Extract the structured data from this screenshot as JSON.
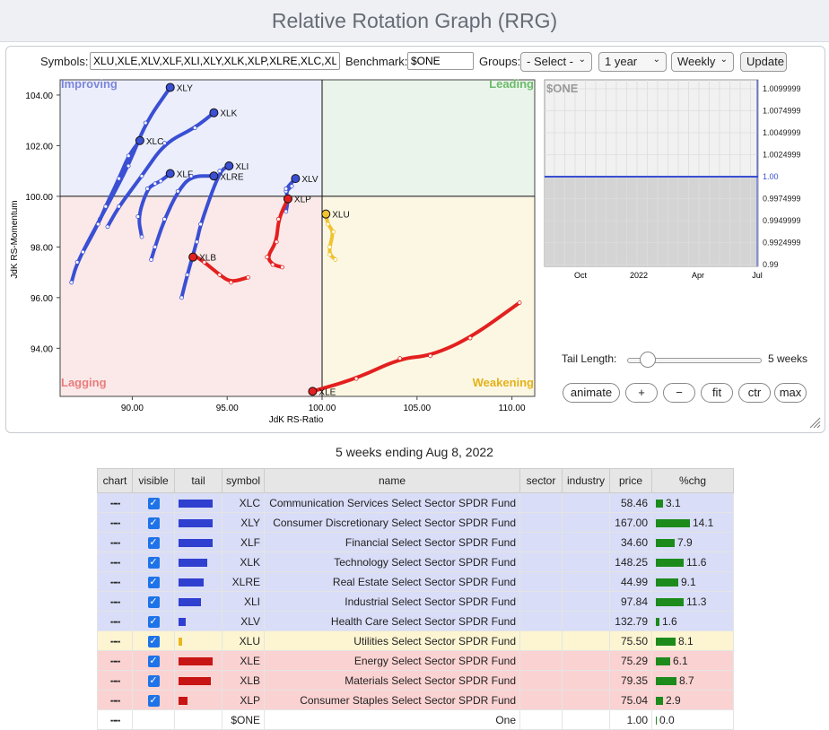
{
  "page": {
    "title": "Relative Rotation Graph (RRG)"
  },
  "controls": {
    "symbols_label": "Symbols:",
    "symbols_value": "XLU,XLE,XLV,XLF,XLI,XLY,XLK,XLP,XLRE,XLC,XLB",
    "benchmark_label": "Benchmark:",
    "benchmark_value": "$ONE",
    "groups_label": "Groups:",
    "groups_selected": "- Select -",
    "period_selected": "1 year",
    "interval_selected": "Weekly",
    "update_label": "Update",
    "tail_length_label": "Tail Length:",
    "tail_length_value": "5 weeks",
    "buttons": {
      "animate": "animate",
      "plus": "+",
      "minus": "−",
      "fit": "fit",
      "ctr": "ctr",
      "max": "max"
    }
  },
  "colors": {
    "improving": "#3a4fd3",
    "lagging": "#e3201f",
    "weakening": "#f0c330",
    "leading": "#2f9a2f"
  },
  "chart_data": [
    {
      "type": "scatter",
      "xlabel": "JdK RS-Ratio",
      "ylabel": "JdK RS-Momentum",
      "xlim": [
        86.2,
        111.2
      ],
      "ylim": [
        92.1,
        104.6
      ],
      "xticks": [
        90,
        95,
        100,
        105,
        110
      ],
      "yticks": [
        94,
        96,
        98,
        100,
        102,
        104
      ],
      "xtick_labels": [
        "90.00",
        "95.00",
        "100.00",
        "105.00",
        "110.00"
      ],
      "ytick_labels": [
        "94.00",
        "96.00",
        "98.00",
        "100.00",
        "102.00",
        "104.00"
      ],
      "quadrants": {
        "improving": "Improving",
        "leading": "Leading",
        "weakening": "Weakening",
        "lagging": "Lagging"
      },
      "series": [
        {
          "name": "XLY",
          "quadrant": "improving",
          "points": [
            [
              86.8,
              96.6
            ],
            [
              87.1,
              97.4
            ],
            [
              88.3,
              99.1
            ],
            [
              89.8,
              101.2
            ],
            [
              90.7,
              102.9
            ],
            [
              92.0,
              104.3
            ]
          ]
        },
        {
          "name": "XLK",
          "quadrant": "improving",
          "points": [
            [
              88.7,
              98.8
            ],
            [
              89.3,
              99.6
            ],
            [
              90.5,
              100.8
            ],
            [
              91.7,
              102.1
            ],
            [
              93.3,
              102.7
            ],
            [
              94.3,
              103.3
            ]
          ]
        },
        {
          "name": "XLC",
          "quadrant": "improving",
          "points": [
            [
              87.4,
              97.8
            ],
            [
              88.2,
              98.9
            ],
            [
              88.6,
              99.6
            ],
            [
              89.3,
              100.7
            ],
            [
              89.8,
              101.6
            ],
            [
              90.4,
              102.2
            ]
          ]
        },
        {
          "name": "XLF",
          "quadrant": "improving",
          "points": [
            [
              90.5,
              98.4
            ],
            [
              90.3,
              99.2
            ],
            [
              90.8,
              100.3
            ],
            [
              91.2,
              100.5
            ],
            [
              91.5,
              100.6
            ],
            [
              92.0,
              100.9
            ]
          ]
        },
        {
          "name": "XLI",
          "quadrant": "improving",
          "points": [
            [
              92.6,
              96.0
            ],
            [
              92.9,
              96.9
            ],
            [
              93.4,
              98.2
            ],
            [
              93.6,
              98.9
            ],
            [
              94.6,
              101.0
            ],
            [
              95.1,
              101.2
            ]
          ]
        },
        {
          "name": "XLRE",
          "quadrant": "improving",
          "points": [
            [
              91.0,
              97.5
            ],
            [
              91.2,
              98.0
            ],
            [
              91.7,
              99.1
            ],
            [
              92.4,
              100.2
            ],
            [
              93.1,
              100.8
            ],
            [
              94.3,
              100.8
            ]
          ]
        },
        {
          "name": "XLV",
          "quadrant": "improving",
          "points": [
            [
              98.1,
              99.4
            ],
            [
              98.2,
              99.8
            ],
            [
              98.1,
              100.2
            ],
            [
              98.4,
              100.4
            ],
            [
              98.1,
              100.3
            ],
            [
              98.6,
              100.7
            ]
          ]
        },
        {
          "name": "XLU",
          "quadrant": "weakening",
          "points": [
            [
              100.7,
              97.5
            ],
            [
              100.4,
              97.7
            ],
            [
              100.4,
              98.0
            ],
            [
              100.6,
              98.6
            ],
            [
              100.3,
              98.9
            ],
            [
              100.2,
              99.3
            ]
          ]
        },
        {
          "name": "XLE",
          "quadrant": "lagging",
          "points": [
            [
              110.4,
              95.8
            ],
            [
              107.8,
              94.4
            ],
            [
              105.7,
              93.7
            ],
            [
              104.1,
              93.6
            ],
            [
              101.8,
              92.8
            ],
            [
              99.5,
              92.3
            ]
          ]
        },
        {
          "name": "XLB",
          "quadrant": "lagging",
          "points": [
            [
              96.1,
              96.8
            ],
            [
              95.2,
              96.6
            ],
            [
              94.6,
              96.9
            ],
            [
              93.8,
              97.4
            ],
            [
              93.2,
              97.7
            ],
            [
              93.2,
              97.6
            ]
          ]
        },
        {
          "name": "XLP",
          "quadrant": "lagging",
          "points": [
            [
              97.9,
              97.2
            ],
            [
              97.4,
              97.3
            ],
            [
              97.1,
              97.6
            ],
            [
              97.6,
              98.2
            ],
            [
              97.7,
              99.1
            ],
            [
              98.2,
              99.9
            ]
          ]
        }
      ]
    },
    {
      "type": "line",
      "title": "$ONE",
      "xtick_labels": [
        "Oct",
        "2022",
        "Apr",
        "Jul"
      ],
      "ytick_labels": [
        "1.0099999",
        "1.0074999",
        "1.0049999",
        "1.0024999",
        "1.00",
        "0.9974999",
        "0.9949999",
        "0.9924999",
        "0.99"
      ],
      "ylim": [
        0.99,
        1.01
      ],
      "values": [
        1.0,
        1.0
      ]
    }
  ],
  "table": {
    "caption": "5 weeks ending Aug 8, 2022",
    "headers": [
      "chart",
      "visible",
      "tail",
      "symbol",
      "name",
      "sector",
      "industry",
      "price",
      "%chg"
    ],
    "rows": [
      {
        "symbol": "XLC",
        "name": "Communication Services Select Sector SPDR Fund",
        "price": "58.46",
        "chg": "3.1",
        "tail": 0.95,
        "group": "improving"
      },
      {
        "symbol": "XLY",
        "name": "Consumer Discretionary Select Sector SPDR Fund",
        "price": "167.00",
        "chg": "14.1",
        "tail": 0.95,
        "group": "improving"
      },
      {
        "symbol": "XLF",
        "name": "Financial Select Sector SPDR Fund",
        "price": "34.60",
        "chg": "7.9",
        "tail": 0.95,
        "group": "improving"
      },
      {
        "symbol": "XLK",
        "name": "Technology Select Sector SPDR Fund",
        "price": "148.25",
        "chg": "11.6",
        "tail": 0.8,
        "group": "improving"
      },
      {
        "symbol": "XLRE",
        "name": "Real Estate Select Sector SPDR Fund",
        "price": "44.99",
        "chg": "9.1",
        "tail": 0.7,
        "group": "improving"
      },
      {
        "symbol": "XLI",
        "name": "Industrial Select Sector SPDR Fund",
        "price": "97.84",
        "chg": "11.3",
        "tail": 0.62,
        "group": "improving"
      },
      {
        "symbol": "XLV",
        "name": "Health Care Select Sector SPDR Fund",
        "price": "132.79",
        "chg": "1.6",
        "tail": 0.2,
        "group": "improving"
      },
      {
        "symbol": "XLU",
        "name": "Utilities Select Sector SPDR Fund",
        "price": "75.50",
        "chg": "8.1",
        "tail": 0.1,
        "group": "weakening"
      },
      {
        "symbol": "XLE",
        "name": "Energy Select Sector SPDR Fund",
        "price": "75.29",
        "chg": "6.1",
        "tail": 0.95,
        "group": "lagging"
      },
      {
        "symbol": "XLB",
        "name": "Materials Select Sector SPDR Fund",
        "price": "79.35",
        "chg": "8.7",
        "tail": 0.9,
        "group": "lagging"
      },
      {
        "symbol": "XLP",
        "name": "Consumer Staples Select Sector SPDR Fund",
        "price": "75.04",
        "chg": "2.9",
        "tail": 0.25,
        "group": "lagging"
      },
      {
        "symbol": "$ONE",
        "name": "One",
        "price": "1.00",
        "chg": "0.0",
        "tail": 0,
        "group": "bench"
      }
    ]
  }
}
